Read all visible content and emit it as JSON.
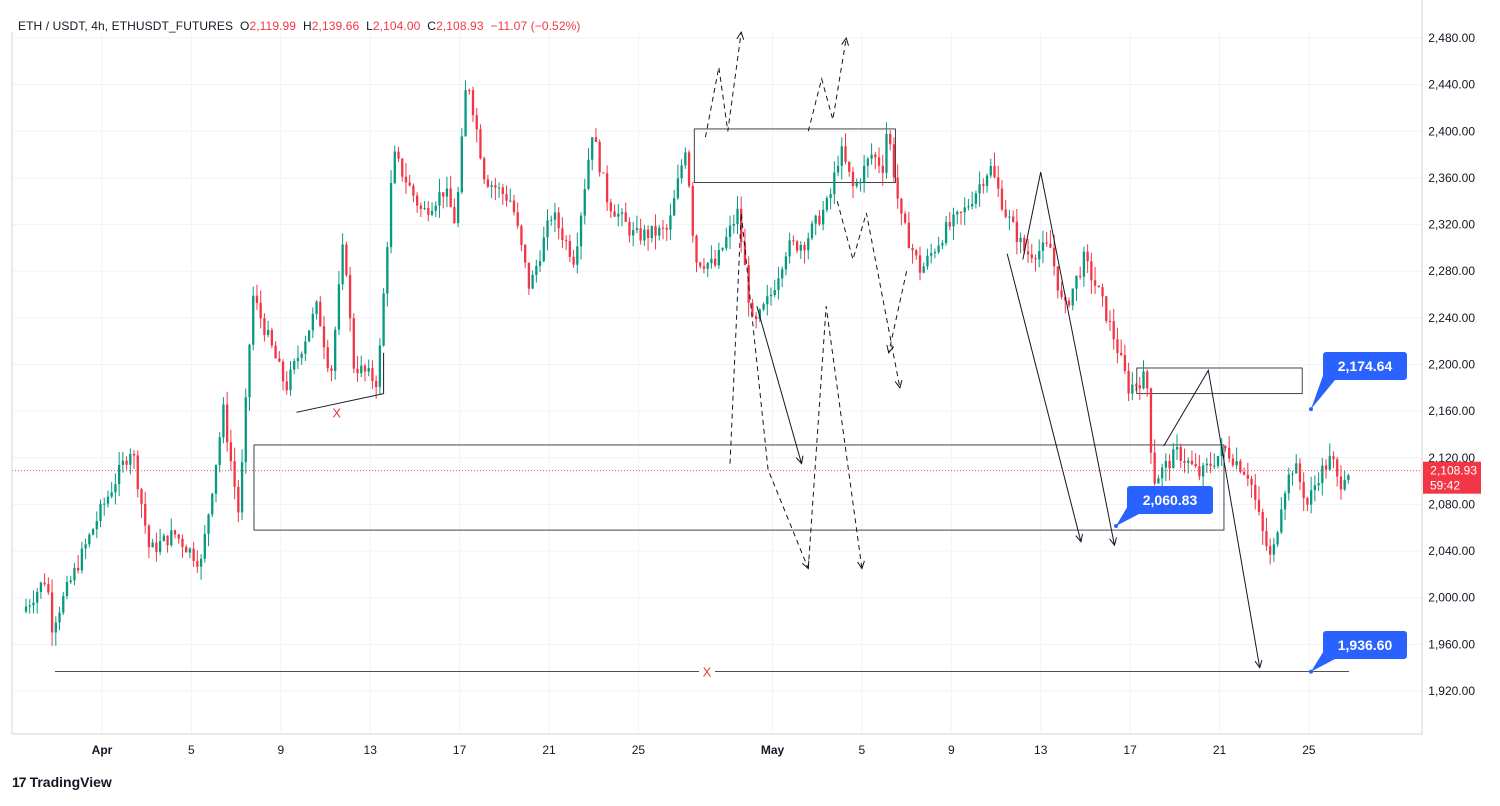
{
  "header": {
    "symbol": "ETH / USDT, 4h, ETHUSDT_FUTURES",
    "o_label": "O",
    "o_value": "2,119.99",
    "h_label": "H",
    "h_value": "2,139.66",
    "l_label": "L",
    "l_value": "2,104.00",
    "c_label": "C",
    "c_value": "2,108.93",
    "change": "−11.07 (−0.52%)"
  },
  "logo": {
    "mark": "17",
    "text": "TradingView"
  },
  "colors": {
    "up": "#089981",
    "down": "#f23645",
    "callout": "#2962ff",
    "last_price": "#f23645",
    "marker": "#f23645"
  },
  "chart_data": {
    "type": "candlestick",
    "y_axis": {
      "min": 1890,
      "max": 2500,
      "ticks": [
        "2,480.00",
        "2,440.00",
        "2,400.00",
        "2,360.00",
        "2,320.00",
        "2,280.00",
        "2,240.00",
        "2,200.00",
        "2,160.00",
        "2,120.00",
        "2,080.00",
        "2,040.00",
        "2,000.00",
        "1,960.00",
        "1,920.00"
      ],
      "tick_values": [
        2480,
        2440,
        2400,
        2360,
        2320,
        2280,
        2240,
        2200,
        2160,
        2120,
        2080,
        2040,
        2000,
        1960,
        1920
      ]
    },
    "x_axis": {
      "labels": [
        "Apr",
        "5",
        "9",
        "13",
        "17",
        "21",
        "25",
        "May",
        "5",
        "9",
        "13",
        "17",
        "21",
        "25"
      ],
      "label_days": [
        1,
        5,
        9,
        13,
        17,
        21,
        25,
        31,
        35,
        39,
        43,
        47,
        51,
        55
      ],
      "bold": [
        "Apr",
        "May"
      ]
    },
    "last_price": {
      "value": "2,108.93",
      "countdown": "59:42",
      "v": 2108.93
    },
    "callouts": [
      {
        "text": "2,174.64",
        "v": 2174.64
      },
      {
        "text": "2,060.83",
        "v": 2060.83
      },
      {
        "text": "1,936.60",
        "v": 1936.6
      }
    ],
    "markers": [
      {
        "text": "X",
        "v": 2159
      },
      {
        "text": "X",
        "v": 1936.6
      }
    ],
    "zones": [
      {
        "name": "large-range",
        "x0": 7.8,
        "x1": 51.2,
        "top": 2131,
        "bottom": 2058
      },
      {
        "name": "supply-upper",
        "x0": 27.5,
        "x1": 36.5,
        "top": 2402,
        "bottom": 2356
      },
      {
        "name": "supply-right",
        "x0": 47.3,
        "x1": 54.7,
        "top": 2197,
        "bottom": 2175
      }
    ],
    "levels": [
      {
        "name": "low-line",
        "x0": -1,
        "x1": 56.8,
        "v": 1936.6
      }
    ],
    "anchors": [
      {
        "day": -2.4,
        "v": 1988
      },
      {
        "day": -1.3,
        "v": 2018
      },
      {
        "day": -1.1,
        "v": 1975
      },
      {
        "day": 1.0,
        "v": 2070
      },
      {
        "day": 2.5,
        "v": 2130
      },
      {
        "day": 3.3,
        "v": 2040
      },
      {
        "day": 4.4,
        "v": 2055
      },
      {
        "day": 5.6,
        "v": 2030
      },
      {
        "day": 6.6,
        "v": 2160
      },
      {
        "day": 7.3,
        "v": 2070
      },
      {
        "day": 7.9,
        "v": 2260
      },
      {
        "day": 9.4,
        "v": 2180
      },
      {
        "day": 10.8,
        "v": 2250
      },
      {
        "day": 11.4,
        "v": 2190
      },
      {
        "day": 12.0,
        "v": 2310
      },
      {
        "day": 12.4,
        "v": 2200
      },
      {
        "day": 13.5,
        "v": 2185
      },
      {
        "day": 14.2,
        "v": 2380
      },
      {
        "day": 15.5,
        "v": 2330
      },
      {
        "day": 16.5,
        "v": 2350
      },
      {
        "day": 17.0,
        "v": 2320
      },
      {
        "day": 17.5,
        "v": 2450
      },
      {
        "day": 18.3,
        "v": 2360
      },
      {
        "day": 19.5,
        "v": 2340
      },
      {
        "day": 20.3,
        "v": 2265
      },
      {
        "day": 21.3,
        "v": 2330
      },
      {
        "day": 22.3,
        "v": 2290
      },
      {
        "day": 23.1,
        "v": 2400
      },
      {
        "day": 23.8,
        "v": 2340
      },
      {
        "day": 25.0,
        "v": 2310
      },
      {
        "day": 26.5,
        "v": 2315
      },
      {
        "day": 27.3,
        "v": 2390
      },
      {
        "day": 27.7,
        "v": 2290
      },
      {
        "day": 28.6,
        "v": 2285
      },
      {
        "day": 29.6,
        "v": 2330
      },
      {
        "day": 30.3,
        "v": 2230
      },
      {
        "day": 31.1,
        "v": 2260
      },
      {
        "day": 31.8,
        "v": 2300
      },
      {
        "day": 32.6,
        "v": 2305
      },
      {
        "day": 33.7,
        "v": 2340
      },
      {
        "day": 34.2,
        "v": 2385
      },
      {
        "day": 34.8,
        "v": 2350
      },
      {
        "day": 35.6,
        "v": 2380
      },
      {
        "day": 36.1,
        "v": 2370
      },
      {
        "day": 36.3,
        "v": 2405
      },
      {
        "day": 36.9,
        "v": 2325
      },
      {
        "day": 37.8,
        "v": 2280
      },
      {
        "day": 38.9,
        "v": 2315
      },
      {
        "day": 39.7,
        "v": 2330
      },
      {
        "day": 40.9,
        "v": 2370
      },
      {
        "day": 41.6,
        "v": 2330
      },
      {
        "day": 42.5,
        "v": 2295
      },
      {
        "day": 43.6,
        "v": 2300
      },
      {
        "day": 44.2,
        "v": 2245
      },
      {
        "day": 45.1,
        "v": 2290
      },
      {
        "day": 45.8,
        "v": 2260
      },
      {
        "day": 46.5,
        "v": 2220
      },
      {
        "day": 47.1,
        "v": 2180
      },
      {
        "day": 47.9,
        "v": 2190
      },
      {
        "day": 48.2,
        "v": 2100
      },
      {
        "day": 49.3,
        "v": 2125
      },
      {
        "day": 50.3,
        "v": 2105
      },
      {
        "day": 51.4,
        "v": 2128
      },
      {
        "day": 52.5,
        "v": 2105
      },
      {
        "day": 53.1,
        "v": 2055
      },
      {
        "day": 53.5,
        "v": 2030
      },
      {
        "day": 54.0,
        "v": 2090
      },
      {
        "day": 54.5,
        "v": 2115
      },
      {
        "day": 55.1,
        "v": 2080
      },
      {
        "day": 55.6,
        "v": 2105
      },
      {
        "day": 56.2,
        "v": 2120
      },
      {
        "day": 56.5,
        "v": 2095
      },
      {
        "day": 56.8,
        "v": 2109
      }
    ],
    "drawings": {
      "solid": [
        [
          [
            9.7,
            2159
          ],
          [
            13.6,
            2175
          ]
        ],
        [
          [
            13.6,
            2175
          ],
          [
            13.6,
            2210
          ]
        ],
        [
          [
            30.3,
            2250
          ],
          [
            32.3,
            2115
          ]
        ],
        [
          [
            42.2,
            2290
          ],
          [
            43.0,
            2365
          ],
          [
            46.3,
            2045
          ]
        ],
        [
          [
            41.5,
            2295
          ],
          [
            44.8,
            2048
          ]
        ],
        [
          [
            48.5,
            2130
          ],
          [
            50.5,
            2195
          ],
          [
            52.8,
            1940
          ]
        ]
      ],
      "dashed": [
        [
          [
            29.1,
            2115
          ],
          [
            29.6,
            2330
          ],
          [
            30.8,
            2110
          ],
          [
            32.6,
            2025
          ]
        ],
        [
          [
            32.6,
            2025
          ],
          [
            33.4,
            2250
          ],
          [
            35.0,
            2025
          ]
        ],
        [
          [
            28.0,
            2395
          ],
          [
            28.6,
            2455
          ],
          [
            29.0,
            2400
          ],
          [
            29.6,
            2485
          ]
        ],
        [
          [
            32.6,
            2400
          ],
          [
            33.2,
            2445
          ],
          [
            33.7,
            2410
          ],
          [
            34.3,
            2480
          ]
        ],
        [
          [
            33.9,
            2340
          ],
          [
            34.6,
            2290
          ],
          [
            35.2,
            2330
          ],
          [
            36.7,
            2180
          ]
        ],
        [
          [
            37.0,
            2280
          ],
          [
            36.2,
            2210
          ]
        ]
      ]
    }
  }
}
